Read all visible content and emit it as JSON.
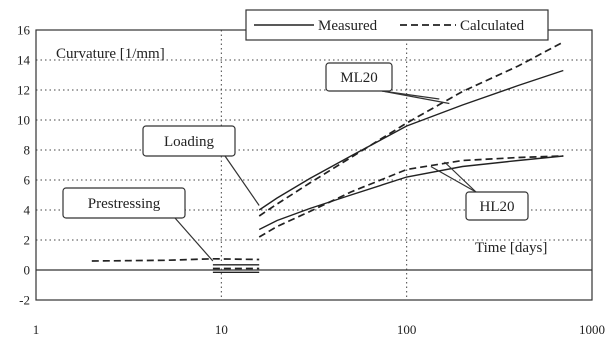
{
  "chart_data": {
    "type": "line",
    "xscale": "log",
    "xlim": [
      1,
      1000
    ],
    "ylim": [
      -2,
      16
    ],
    "xticks": [
      1,
      10,
      100,
      1000
    ],
    "yticks": [
      -2,
      0,
      2,
      4,
      6,
      8,
      10,
      12,
      14,
      16
    ],
    "ylabel": "Curvature [1/mm]",
    "xlabel": "Time [days]",
    "grid": "dotted",
    "legend_position": "top-right",
    "legend": [
      {
        "label": "Measured",
        "style": "solid"
      },
      {
        "label": "Calculated",
        "style": "dashed"
      }
    ],
    "annotations": [
      {
        "text": "Prestressing",
        "points_to": {
          "x": 9.0,
          "y": 0.6
        }
      },
      {
        "text": "Loading",
        "points_to": {
          "x": 16,
          "y": 4.3
        }
      },
      {
        "text": "ML20",
        "points_to": [
          {
            "x": 170,
            "y": 11.1
          },
          {
            "x": 150,
            "y": 11.4
          }
        ]
      },
      {
        "text": "HL20",
        "points_to": [
          {
            "x": 135,
            "y": 6.9
          },
          {
            "x": 160,
            "y": 7.2
          }
        ]
      }
    ],
    "series": [
      {
        "group": "ML20",
        "style": "solid",
        "x": [
          16,
          20,
          30,
          50,
          100,
          200,
          400,
          700
        ],
        "y": [
          4.0,
          4.8,
          6.1,
          7.6,
          9.6,
          11.0,
          12.3,
          13.3
        ]
      },
      {
        "group": "ML20",
        "style": "dashed",
        "x": [
          16,
          20,
          30,
          50,
          100,
          200,
          400,
          700
        ],
        "y": [
          3.6,
          4.4,
          5.8,
          7.5,
          9.8,
          11.9,
          13.6,
          15.2
        ]
      },
      {
        "group": "HL20",
        "style": "solid",
        "x": [
          16,
          20,
          30,
          50,
          100,
          200,
          400,
          700
        ],
        "y": [
          2.7,
          3.3,
          4.1,
          5.0,
          6.2,
          6.9,
          7.3,
          7.6
        ]
      },
      {
        "group": "HL20",
        "style": "dashed",
        "x": [
          16,
          20,
          30,
          50,
          100,
          200,
          400,
          700
        ],
        "y": [
          2.2,
          2.9,
          3.9,
          5.2,
          6.7,
          7.3,
          7.5,
          7.6
        ]
      },
      {
        "group": "prestressing",
        "style": "dashed",
        "x": [
          2,
          5,
          9,
          16
        ],
        "y": [
          0.6,
          0.65,
          0.75,
          0.7
        ]
      },
      {
        "group": "prestressing",
        "style": "solid",
        "x": [
          9,
          16
        ],
        "y": [
          -0.15,
          -0.15
        ]
      },
      {
        "group": "prestressing",
        "style": "solid",
        "x": [
          9,
          16
        ],
        "y": [
          0.35,
          0.35
        ]
      },
      {
        "group": "prestressing",
        "style": "dashed",
        "x": [
          9,
          16
        ],
        "y": [
          0.1,
          0.1
        ]
      }
    ]
  }
}
